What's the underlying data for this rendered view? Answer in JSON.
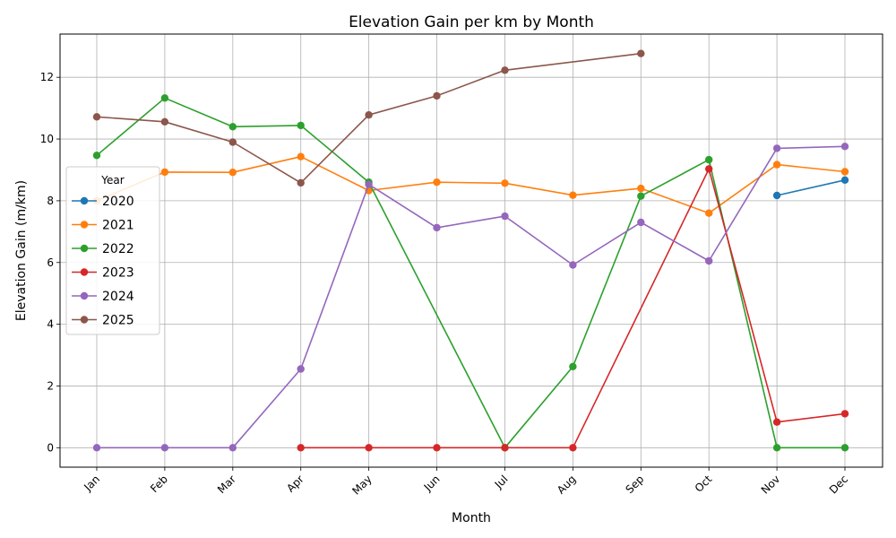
{
  "chart_data": {
    "type": "line",
    "title": "Elevation Gain per km by Month",
    "xlabel": "Month",
    "ylabel": "Elevation Gain (m/km)",
    "categories": [
      "Jan",
      "Feb",
      "Mar",
      "Apr",
      "May",
      "Jun",
      "Jul",
      "Aug",
      "Sep",
      "Oct",
      "Nov",
      "Dec"
    ],
    "ylim": [
      -0.63,
      13.4
    ],
    "yticks": [
      0,
      2,
      4,
      6,
      8,
      10,
      12
    ],
    "grid": true,
    "legend": {
      "title": "Year",
      "placement": "center-left"
    },
    "series": [
      {
        "name": "2020",
        "color": "#1f77b4",
        "values": [
          null,
          null,
          null,
          null,
          null,
          null,
          null,
          null,
          null,
          null,
          8.17,
          8.67
        ]
      },
      {
        "name": "2021",
        "color": "#ff7f0e",
        "values": [
          8.0,
          8.93,
          8.92,
          9.43,
          8.33,
          8.6,
          8.57,
          8.18,
          8.4,
          7.6,
          9.17,
          8.94
        ]
      },
      {
        "name": "2022",
        "color": "#2ca02c",
        "values": [
          9.47,
          11.33,
          10.4,
          10.44,
          8.6,
          null,
          0.0,
          2.63,
          8.15,
          9.33,
          0.0,
          0.0
        ]
      },
      {
        "name": "2023",
        "color": "#d62728",
        "values": [
          null,
          null,
          null,
          0.0,
          0.0,
          0.0,
          0.0,
          0.0,
          null,
          9.03,
          0.83,
          1.1
        ]
      },
      {
        "name": "2024",
        "color": "#9467bd",
        "values": [
          0.0,
          0.0,
          0.0,
          2.55,
          8.53,
          7.13,
          7.5,
          5.92,
          7.3,
          6.05,
          9.7,
          9.76
        ]
      },
      {
        "name": "2025",
        "color": "#8c564b",
        "values": [
          10.72,
          10.56,
          9.9,
          8.58,
          10.78,
          11.4,
          12.23,
          null,
          12.77,
          null,
          null,
          null
        ]
      }
    ]
  }
}
